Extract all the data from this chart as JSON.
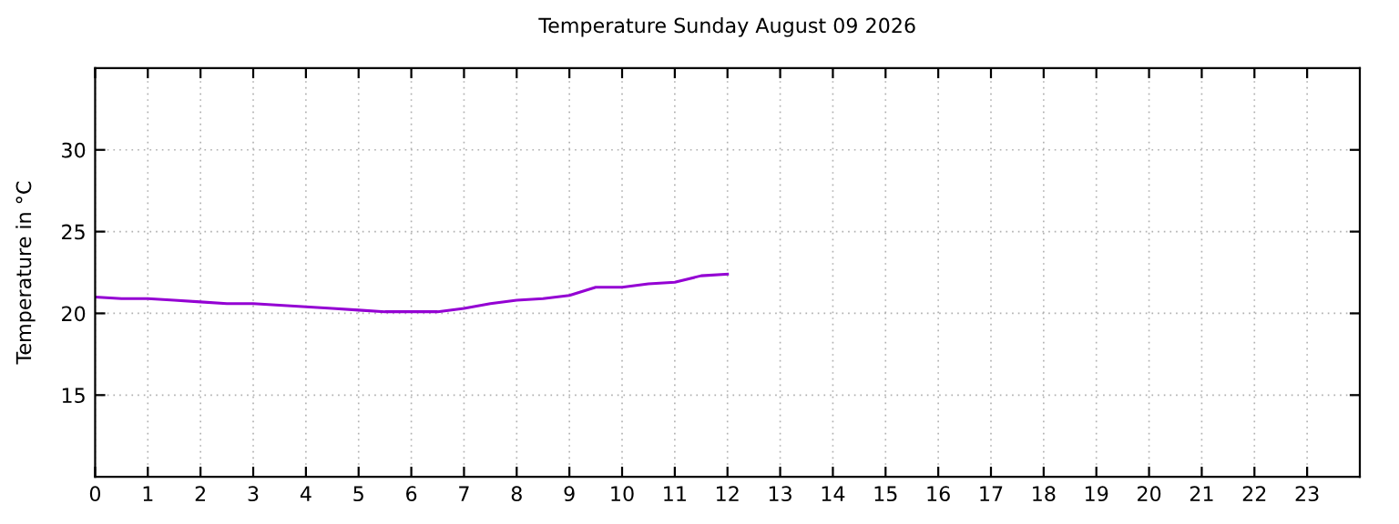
{
  "chart_data": {
    "type": "line",
    "title": "Temperature Sunday August 09 2026",
    "ylabel": "Temperature in °C",
    "x": [
      0,
      0.5,
      1,
      1.5,
      2,
      2.5,
      3,
      3.5,
      4,
      4.5,
      5,
      5.5,
      6,
      6.5,
      7,
      7.5,
      8,
      8.5,
      9,
      9.5,
      10,
      10.5,
      11,
      11.5,
      12
    ],
    "series": [
      {
        "color": "#9400d3",
        "values": [
          21.0,
          20.9,
          20.9,
          20.8,
          20.7,
          20.6,
          20.6,
          20.5,
          20.4,
          20.3,
          20.2,
          20.1,
          20.1,
          20.1,
          20.3,
          20.6,
          20.8,
          20.9,
          21.1,
          21.6,
          21.6,
          21.8,
          21.9,
          22.3,
          22.4
        ]
      }
    ],
    "xlim": [
      0,
      24
    ],
    "xticks": [
      0,
      1,
      2,
      3,
      4,
      5,
      6,
      7,
      8,
      9,
      10,
      11,
      12,
      13,
      14,
      15,
      16,
      17,
      18,
      19,
      20,
      21,
      22,
      23
    ],
    "ylim": [
      10,
      35
    ],
    "yticks": [
      15,
      20,
      25,
      30
    ],
    "grid": true,
    "line_style": "solid",
    "marker": "none"
  }
}
